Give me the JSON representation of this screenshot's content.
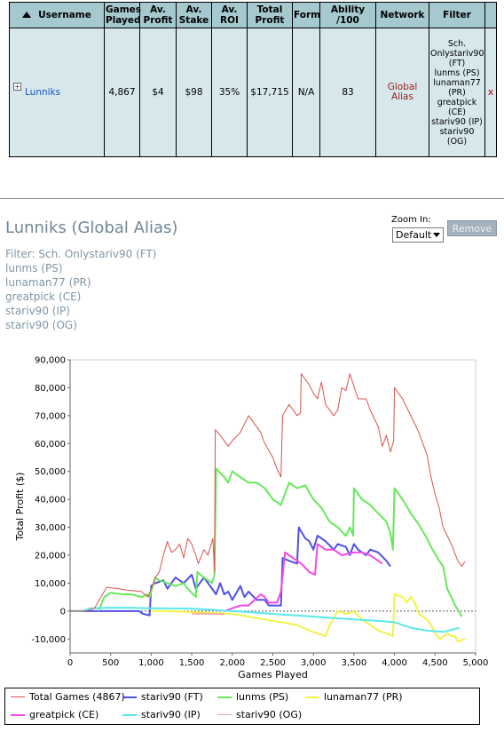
{
  "table": {
    "headers": [
      "Username",
      "Games Played",
      "Av. Profit",
      "Av. Stake",
      "Av. ROI",
      "Total Profit",
      "Form",
      "Ability /100",
      "Network",
      "Filter"
    ],
    "sort_icon": "sort-up-arrow-icon",
    "row": {
      "expander": "+",
      "username": "Lunniks",
      "games_played": "4,867",
      "av_profit": "$4",
      "av_stake": "$98",
      "av_roi": "35%",
      "total_profit": "$17,715",
      "form": "N/A",
      "ability": "83",
      "network": "Global Alias",
      "filter_lines": [
        "Sch. Onlystariv90 (FT)",
        "lunms (PS)",
        "lunaman77 (PR)",
        "greatpick (CE)",
        "stariv90 (IP)",
        "stariv90 (OG)"
      ],
      "remove": "x"
    }
  },
  "player": {
    "title": "Lunniks (Global Alias)",
    "filter_lines": [
      "Filter: Sch. Onlystariv90 (FT)",
      "lunms (PS)",
      "lunaman77 (PR)",
      "greatpick (CE)",
      "stariv90 (IP)",
      "stariv90 (OG)"
    ]
  },
  "zoom": {
    "label": "Zoom In:",
    "value": "Default"
  },
  "remove_button": "Remove",
  "colors": {
    "header_bg": "#a5c9cf",
    "row_bg": "#d6e8eb",
    "total": "#d9534f",
    "ft": "#5050e8",
    "ps": "#66e85a",
    "pr": "#f2f24a",
    "ce": "#f24ae6",
    "ip": "#5ae8ea",
    "og": "#f0a0a0"
  },
  "chart_data": {
    "type": "line",
    "xlabel": "Games Played",
    "ylabel": "Total Profit ($)",
    "xlim": [
      0,
      5000
    ],
    "ylim": [
      -15000,
      90000
    ],
    "x_ticks": [
      "0",
      "500",
      "1,000",
      "1,500",
      "2,000",
      "2,500",
      "3,000",
      "3,500",
      "4,000",
      "4,500",
      "5,000"
    ],
    "y_ticks": [
      "-10,000",
      "0",
      "10,000",
      "20,000",
      "30,000",
      "40,000",
      "50,000",
      "60,000",
      "70,000",
      "80,000",
      "90,000"
    ],
    "zero_line": "dashed",
    "legend_position": "bottom",
    "series": [
      {
        "name": "Total Games (4867)",
        "color": "#d9534f",
        "width": 1,
        "points": [
          [
            0,
            0
          ],
          [
            200,
            0
          ],
          [
            300,
            1000
          ],
          [
            450,
            8500
          ],
          [
            600,
            8000
          ],
          [
            700,
            7500
          ],
          [
            880,
            7000
          ],
          [
            960,
            5000
          ],
          [
            1000,
            8000
          ],
          [
            1050,
            12000
          ],
          [
            1100,
            14000
          ],
          [
            1150,
            20000
          ],
          [
            1200,
            25000
          ],
          [
            1250,
            21000
          ],
          [
            1300,
            22000
          ],
          [
            1350,
            24000
          ],
          [
            1400,
            19000
          ],
          [
            1450,
            26000
          ],
          [
            1500,
            24000
          ],
          [
            1550,
            20000
          ],
          [
            1580,
            17000
          ],
          [
            1650,
            22000
          ],
          [
            1700,
            20000
          ],
          [
            1760,
            26000
          ],
          [
            1780,
            14000
          ],
          [
            1790,
            65000
          ],
          [
            1850,
            63000
          ],
          [
            1950,
            59000
          ],
          [
            2000,
            61000
          ],
          [
            2100,
            64000
          ],
          [
            2200,
            70000
          ],
          [
            2250,
            68000
          ],
          [
            2350,
            64000
          ],
          [
            2400,
            60000
          ],
          [
            2500,
            55000
          ],
          [
            2550,
            51000
          ],
          [
            2600,
            48000
          ],
          [
            2620,
            70000
          ],
          [
            2700,
            74000
          ],
          [
            2800,
            70000
          ],
          [
            2840,
            71000
          ],
          [
            2850,
            85000
          ],
          [
            2950,
            81000
          ],
          [
            3000,
            78000
          ],
          [
            3050,
            76000
          ],
          [
            3100,
            82000
          ],
          [
            3150,
            74000
          ],
          [
            3250,
            70000
          ],
          [
            3300,
            72000
          ],
          [
            3350,
            80000
          ],
          [
            3400,
            79000
          ],
          [
            3450,
            85000
          ],
          [
            3550,
            76000
          ],
          [
            3650,
            76000
          ],
          [
            3700,
            72000
          ],
          [
            3800,
            66000
          ],
          [
            3850,
            59000
          ],
          [
            3900,
            63000
          ],
          [
            3950,
            57000
          ],
          [
            3990,
            61000
          ],
          [
            4000,
            80000
          ],
          [
            4100,
            76000
          ],
          [
            4200,
            70000
          ],
          [
            4300,
            64000
          ],
          [
            4400,
            56000
          ],
          [
            4450,
            48000
          ],
          [
            4500,
            42000
          ],
          [
            4550,
            37000
          ],
          [
            4600,
            30000
          ],
          [
            4700,
            24000
          ],
          [
            4780,
            18000
          ],
          [
            4830,
            16000
          ],
          [
            4867,
            17715
          ]
        ]
      },
      {
        "name": "stariv90 (FT)",
        "color": "#5050e8",
        "width": 2,
        "points": [
          [
            0,
            0
          ],
          [
            500,
            0
          ],
          [
            750,
            0
          ],
          [
            850,
            0
          ],
          [
            900,
            -1000
          ],
          [
            980,
            -1500
          ],
          [
            1000,
            9000
          ],
          [
            1050,
            10000
          ],
          [
            1150,
            11000
          ],
          [
            1200,
            8000
          ],
          [
            1300,
            12000
          ],
          [
            1400,
            10000
          ],
          [
            1500,
            13000
          ],
          [
            1550,
            8000
          ],
          [
            1650,
            12000
          ],
          [
            1700,
            10000
          ],
          [
            1800,
            6000
          ],
          [
            1850,
            10000
          ],
          [
            1900,
            6000
          ],
          [
            1950,
            7000
          ],
          [
            2000,
            4000
          ],
          [
            2100,
            9000
          ],
          [
            2150,
            5000
          ],
          [
            2200,
            7000
          ],
          [
            2300,
            4000
          ],
          [
            2400,
            4000
          ],
          [
            2450,
            2000
          ],
          [
            2600,
            2000
          ],
          [
            2620,
            19000
          ],
          [
            2700,
            18000
          ],
          [
            2800,
            17000
          ],
          [
            2820,
            30000
          ],
          [
            2900,
            26000
          ],
          [
            2950,
            25000
          ],
          [
            3000,
            22000
          ],
          [
            3050,
            27000
          ],
          [
            3150,
            25000
          ],
          [
            3250,
            22000
          ],
          [
            3300,
            24000
          ],
          [
            3400,
            23000
          ],
          [
            3450,
            20000
          ],
          [
            3500,
            24000
          ],
          [
            3550,
            22000
          ],
          [
            3650,
            20000
          ],
          [
            3700,
            22000
          ],
          [
            3800,
            21000
          ],
          [
            3900,
            18000
          ],
          [
            3950,
            16000
          ]
        ]
      },
      {
        "name": "lunms (PS)",
        "color": "#66e85a",
        "width": 2,
        "points": [
          [
            350,
            0
          ],
          [
            420,
            5000
          ],
          [
            500,
            6500
          ],
          [
            650,
            6000
          ],
          [
            750,
            6000
          ],
          [
            880,
            5000
          ],
          [
            950,
            6000
          ],
          [
            980,
            5000
          ],
          [
            1050,
            12000
          ],
          [
            1100,
            11000
          ],
          [
            1200,
            10000
          ],
          [
            1300,
            9000
          ],
          [
            1400,
            10000
          ],
          [
            1450,
            8000
          ],
          [
            1550,
            5000
          ],
          [
            1570,
            14000
          ],
          [
            1650,
            12000
          ],
          [
            1750,
            10000
          ],
          [
            1780,
            13000
          ],
          [
            1800,
            51000
          ],
          [
            1900,
            48000
          ],
          [
            1950,
            46000
          ],
          [
            2000,
            50000
          ],
          [
            2100,
            48000
          ],
          [
            2200,
            46000
          ],
          [
            2300,
            46000
          ],
          [
            2400,
            44000
          ],
          [
            2500,
            40000
          ],
          [
            2600,
            38000
          ],
          [
            2700,
            46000
          ],
          [
            2800,
            44000
          ],
          [
            2900,
            45000
          ],
          [
            3000,
            40000
          ],
          [
            3100,
            37000
          ],
          [
            3200,
            32000
          ],
          [
            3300,
            30000
          ],
          [
            3400,
            27000
          ],
          [
            3450,
            30000
          ],
          [
            3490,
            27000
          ],
          [
            3500,
            44000
          ],
          [
            3600,
            40000
          ],
          [
            3700,
            38000
          ],
          [
            3800,
            35000
          ],
          [
            3900,
            32000
          ],
          [
            3950,
            28000
          ],
          [
            3980,
            22000
          ],
          [
            4000,
            44000
          ],
          [
            4100,
            40000
          ],
          [
            4200,
            35000
          ],
          [
            4300,
            31000
          ],
          [
            4400,
            26000
          ],
          [
            4450,
            23000
          ],
          [
            4550,
            18000
          ],
          [
            4600,
            16000
          ],
          [
            4650,
            8000
          ],
          [
            4750,
            2000
          ],
          [
            4830,
            -2000
          ]
        ]
      },
      {
        "name": "lunaman77 (PR)",
        "color": "#f2f24a",
        "width": 2,
        "points": [
          [
            1000,
            0
          ],
          [
            1200,
            0
          ],
          [
            1600,
            -500
          ],
          [
            2000,
            -1000
          ],
          [
            2200,
            -2000
          ],
          [
            2400,
            -3000
          ],
          [
            2600,
            -4000
          ],
          [
            2800,
            -5000
          ],
          [
            2950,
            -7000
          ],
          [
            3050,
            -8000
          ],
          [
            3150,
            -9000
          ],
          [
            3200,
            -5000
          ],
          [
            3300,
            0
          ],
          [
            3400,
            -1000
          ],
          [
            3500,
            0
          ],
          [
            3600,
            -3000
          ],
          [
            3700,
            -5000
          ],
          [
            3800,
            -7000
          ],
          [
            3900,
            -8000
          ],
          [
            3980,
            -9000
          ],
          [
            4000,
            6000
          ],
          [
            4100,
            5000
          ],
          [
            4150,
            3000
          ],
          [
            4200,
            5000
          ],
          [
            4250,
            3000
          ],
          [
            4300,
            -1000
          ],
          [
            4400,
            -3000
          ],
          [
            4450,
            -5000
          ],
          [
            4500,
            -8000
          ],
          [
            4560,
            -10000
          ],
          [
            4650,
            -8000
          ],
          [
            4700,
            -9000
          ],
          [
            4750,
            -9000
          ],
          [
            4780,
            -11000
          ],
          [
            4867,
            -10000
          ]
        ]
      },
      {
        "name": "greatpick (CE)",
        "color": "#f24ae6",
        "width": 2,
        "points": [
          [
            1900,
            0
          ],
          [
            2000,
            1000
          ],
          [
            2100,
            2000
          ],
          [
            2200,
            2000
          ],
          [
            2350,
            6000
          ],
          [
            2400,
            5000
          ],
          [
            2450,
            3000
          ],
          [
            2550,
            3000
          ],
          [
            2600,
            7000
          ],
          [
            2650,
            21000
          ],
          [
            2700,
            20000
          ],
          [
            2800,
            18000
          ],
          [
            2850,
            17000
          ],
          [
            2950,
            14000
          ],
          [
            3020,
            13000
          ],
          [
            3050,
            24000
          ],
          [
            3150,
            22000
          ],
          [
            3250,
            22000
          ],
          [
            3350,
            20000
          ],
          [
            3500,
            21000
          ],
          [
            3600,
            21000
          ],
          [
            3700,
            20000
          ],
          [
            3800,
            18000
          ],
          [
            3850,
            17000
          ]
        ]
      },
      {
        "name": "stariv90 (IP)",
        "color": "#5ae8ea",
        "width": 2,
        "points": [
          [
            0,
            0
          ],
          [
            150,
            0
          ],
          [
            250,
            1000
          ],
          [
            500,
            1200
          ],
          [
            750,
            1200
          ],
          [
            1000,
            1000
          ],
          [
            1500,
            900
          ],
          [
            2000,
            0
          ],
          [
            2500,
            -1000
          ],
          [
            3000,
            -2000
          ],
          [
            3500,
            -3000
          ],
          [
            3800,
            -3500
          ],
          [
            4000,
            -4000
          ],
          [
            4200,
            -6000
          ],
          [
            4400,
            -7000
          ],
          [
            4600,
            -7500
          ],
          [
            4800,
            -6000
          ]
        ]
      },
      {
        "name": "stariv90 (OG)",
        "color": "#f0a0a0",
        "width": 1.5,
        "points": [
          [
            1500,
            -1000
          ],
          [
            1800,
            -1000
          ],
          [
            1900,
            -1200
          ]
        ]
      }
    ]
  }
}
